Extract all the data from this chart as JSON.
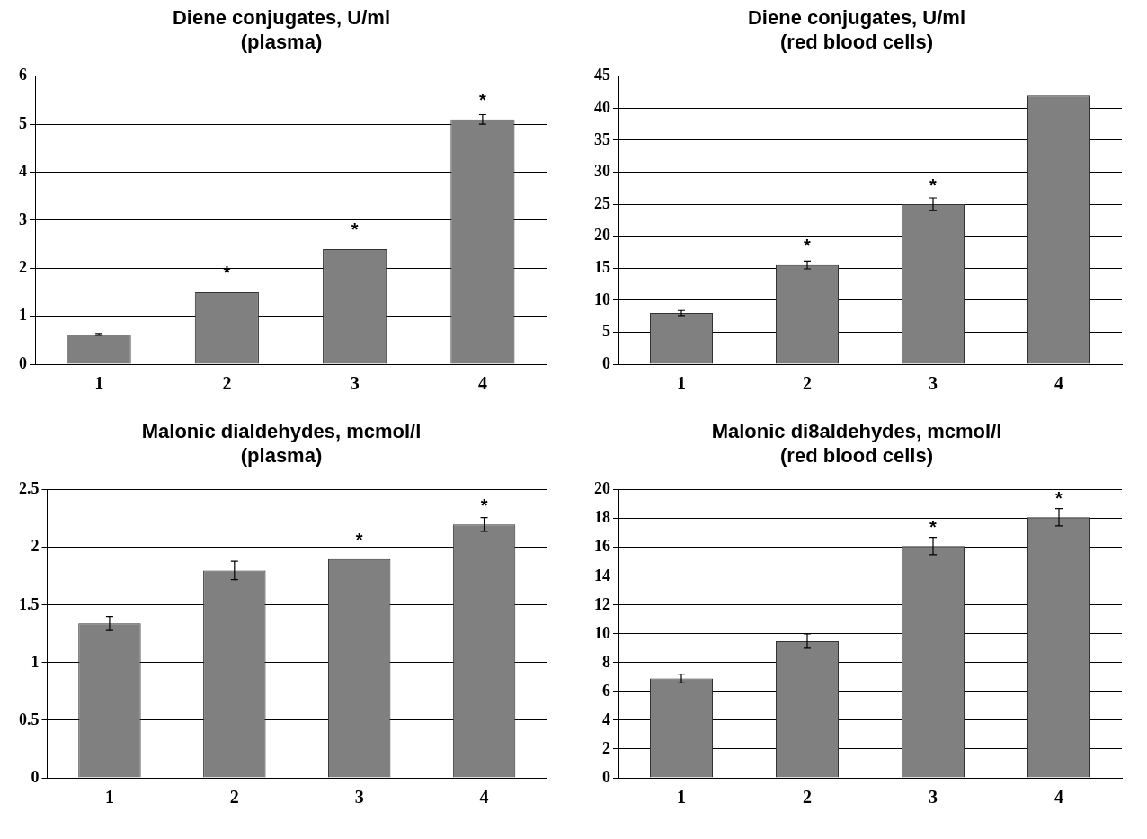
{
  "chart_data": [
    {
      "type": "bar",
      "title": [
        "Diene conjugates, U/ml",
        "(plasma)"
      ],
      "categories": [
        "1",
        "2",
        "3",
        "4"
      ],
      "values": [
        0.62,
        1.5,
        2.4,
        5.1
      ],
      "errors": [
        0.02,
        null,
        null,
        0.1
      ],
      "color": "#808080",
      "ylim": [
        0,
        6
      ],
      "yticks": [
        0,
        1,
        2,
        3,
        4,
        5,
        6
      ],
      "grid": "y",
      "legend": false,
      "annotations": [
        {
          "text": "*",
          "x": "2",
          "y": 1.5
        },
        {
          "text": "*",
          "x": "3",
          "y": 2.4
        },
        {
          "text": "*",
          "x": "4",
          "y": 5.1
        }
      ]
    },
    {
      "type": "bar",
      "title": [
        "Diene conjugates, U/ml",
        "(red blood cells)"
      ],
      "categories": [
        "1",
        "2",
        "3",
        "4"
      ],
      "values": [
        8,
        15.5,
        25,
        42
      ],
      "errors": [
        0.4,
        0.6,
        1,
        null
      ],
      "color": "#808080",
      "ylim": [
        0,
        45
      ],
      "yticks": [
        0,
        5,
        10,
        15,
        20,
        25,
        30,
        35,
        40,
        45
      ],
      "grid": "y",
      "legend": false,
      "annotations": [
        {
          "text": "*",
          "x": "2",
          "y": 15.5
        },
        {
          "text": "*",
          "x": "3",
          "y": 25
        }
      ]
    },
    {
      "type": "bar",
      "title": [
        "Malonic dialdehydes, mcmol/l",
        "(plasma)"
      ],
      "categories": [
        "1",
        "2",
        "3",
        "4"
      ],
      "values": [
        1.34,
        1.8,
        1.9,
        2.2
      ],
      "errors": [
        0.06,
        0.08,
        null,
        0.06
      ],
      "color": "#808080",
      "ylim": [
        0,
        2.5
      ],
      "yticks": [
        0,
        0.5,
        1,
        1.5,
        2,
        2.5
      ],
      "grid": "y",
      "legend": false,
      "annotations": [
        {
          "text": "*",
          "x": "3",
          "y": 1.9
        },
        {
          "text": "*",
          "x": "4",
          "y": 2.2
        }
      ]
    },
    {
      "type": "bar",
      "title": [
        "Malonic di8aldehydes, mcmol/l",
        "(red blood cells)"
      ],
      "categories": [
        "1",
        "2",
        "3",
        "4"
      ],
      "values": [
        6.9,
        9.5,
        16.1,
        18.1
      ],
      "errors": [
        0.3,
        0.5,
        0.6,
        0.6
      ],
      "color": "#808080",
      "ylim": [
        0,
        20
      ],
      "yticks": [
        0,
        2,
        4,
        6,
        8,
        10,
        12,
        14,
        16,
        18,
        20
      ],
      "grid": "y",
      "legend": false,
      "annotations": [
        {
          "text": "*",
          "x": "3",
          "y": 16.1
        },
        {
          "text": "*",
          "x": "4",
          "y": 18.1
        }
      ]
    }
  ]
}
